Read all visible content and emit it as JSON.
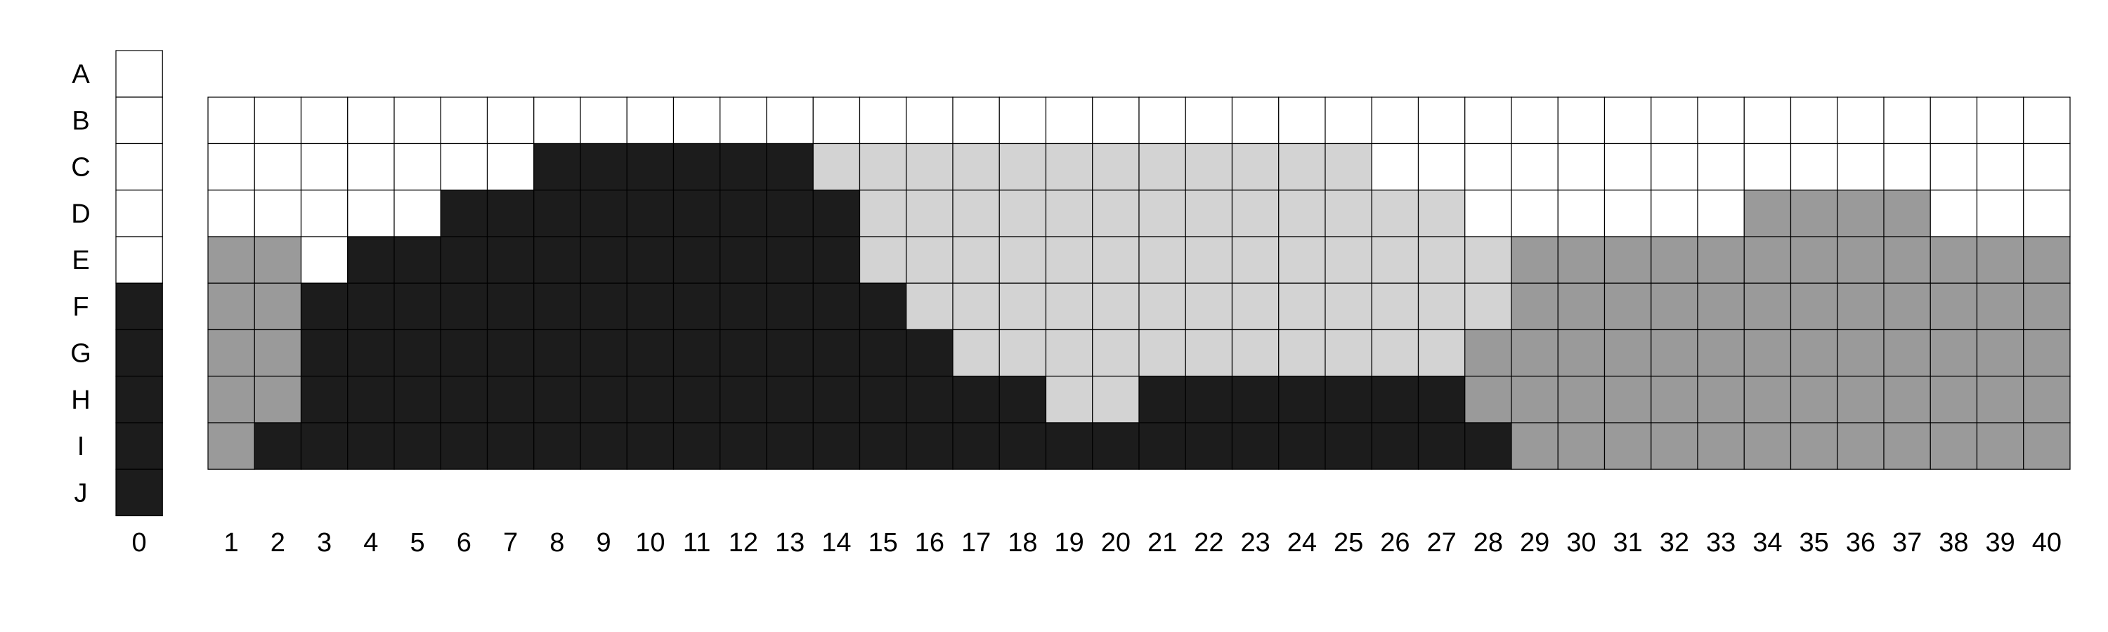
{
  "palette": {
    "w": "#ffffff",
    "k": "#1c1c1c",
    "l": "#d3d3d3",
    "m": "#9a9a9a",
    "grid_line": "#000000"
  },
  "legend": {
    "key_column_label": "0",
    "key_cells": [
      "w",
      "w",
      "w",
      "w",
      "w",
      "k",
      "k",
      "k",
      "k",
      "k"
    ]
  },
  "row_labels": [
    "A",
    "B",
    "C",
    "D",
    "E",
    "F",
    "G",
    "H",
    "I",
    "J"
  ],
  "column_labels": [
    "1",
    "2",
    "3",
    "4",
    "5",
    "6",
    "7",
    "8",
    "9",
    "10",
    "11",
    "12",
    "13",
    "14",
    "15",
    "16",
    "17",
    "18",
    "19",
    "20",
    "21",
    "22",
    "23",
    "24",
    "25",
    "26",
    "27",
    "28",
    "29",
    "30",
    "31",
    "32",
    "33",
    "34",
    "35",
    "36",
    "37",
    "38",
    "39",
    "40"
  ],
  "grid": {
    "first_row": "B",
    "rows": [
      "wwwwwwwwwwwwwwwwwwwwwwwwwwwwwwwwwwwwwwww",
      "wwwwwwwkkkkkkllllllllllllwwwwwwwwwwwwwww",
      "wwwwwkkkkkkkkklllllllllllllwwwwwwmmmmwww",
      "mmwkkkkkkkkkkkllllllllllllllmmmmmmmmmmmm",
      "mmkkkkkkkkkkkkklllllllllllllmmmmmmmmmmmm",
      "mmkkkkkkkkkkkkkklllllllllllmmmmmmmmmmmmm",
      "mmkkkkkkkkkkkkkkkkllkkkkkkkmmmmmmmmmmmmm",
      "mkkkkkkkkkkkkkkkkkkkkkkkkkkkmmmmmmmmmmmm"
    ]
  }
}
